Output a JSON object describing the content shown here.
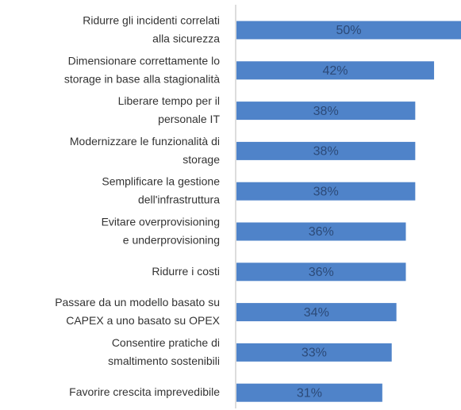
{
  "chart_data": {
    "type": "bar",
    "orientation": "horizontal",
    "categories": [
      "Ridurre gli incidenti correlati\nalla sicurezza",
      "Dimensionare correttamente lo\nstorage in base alla stagionalità",
      "Liberare tempo per il\npersonale IT",
      "Modernizzare le funzionalità di\nstorage",
      "Semplificare la gestione\ndell'infrastruttura",
      "Evitare overprovisioning\ne underprovisioning",
      "Ridurre i costi",
      "Passare da un modello basato su\nCAPEX a uno basato su OPEX",
      "Consentire pratiche di\nsmaltimento sostenibili",
      "Favorire crescita imprevedibile"
    ],
    "values": [
      50,
      42,
      38,
      38,
      38,
      36,
      36,
      34,
      33,
      31
    ],
    "value_labels": [
      "50%",
      "42%",
      "38%",
      "38%",
      "38%",
      "36%",
      "36%",
      "34%",
      "33%",
      "31%"
    ],
    "color": "#4f83c9"
  }
}
